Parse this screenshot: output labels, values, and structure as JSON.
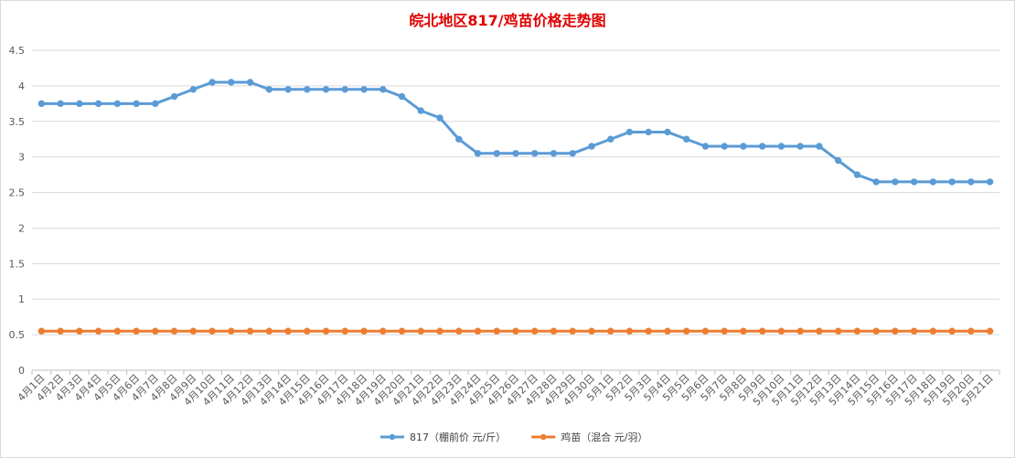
{
  "chart_data": {
    "type": "line",
    "title": "皖北地区817/鸡苗价格走势图",
    "xlabel": "",
    "ylabel": "",
    "ylim": [
      0,
      4.5
    ],
    "yticks": [
      "0",
      "0.5",
      "1",
      "1.5",
      "2",
      "2.5",
      "3",
      "3.5",
      "4",
      "4.5"
    ],
    "grid": true,
    "legend_position": "bottom",
    "categories": [
      "4月1日",
      "4月2日",
      "4月3日",
      "4月4日",
      "4月5日",
      "4月6日",
      "4月7日",
      "4月8日",
      "4月9日",
      "4月10日",
      "4月11日",
      "4月12日",
      "4月13日",
      "4月14日",
      "4月15日",
      "4月16日",
      "4月17日",
      "4月18日",
      "4月19日",
      "4月20日",
      "4月21日",
      "4月22日",
      "4月23日",
      "4月24日",
      "4月25日",
      "4月26日",
      "4月27日",
      "4月28日",
      "4月29日",
      "4月30日",
      "5月1日",
      "5月2日",
      "5月3日",
      "5月4日",
      "5月5日",
      "5月6日",
      "5月7日",
      "5月8日",
      "5月9日",
      "5月10日",
      "5月11日",
      "5月12日",
      "5月13日",
      "5月14日",
      "5月15日",
      "5月16日",
      "5月17日",
      "5月18日",
      "5月19日",
      "5月20日",
      "5月21日"
    ],
    "series": [
      {
        "name": "817（棚前价 元/斤）",
        "color": "#5b9bd5",
        "values": [
          3.75,
          3.75,
          3.75,
          3.75,
          3.75,
          3.75,
          3.75,
          3.85,
          3.95,
          4.05,
          4.05,
          4.05,
          3.95,
          3.95,
          3.95,
          3.95,
          3.95,
          3.95,
          3.95,
          3.85,
          3.65,
          3.55,
          3.25,
          3.05,
          3.05,
          3.05,
          3.05,
          3.05,
          3.05,
          3.15,
          3.25,
          3.35,
          3.35,
          3.35,
          3.25,
          3.15,
          3.15,
          3.15,
          3.15,
          3.15,
          3.15,
          3.15,
          2.95,
          2.75,
          2.65,
          2.65,
          2.65,
          2.65,
          2.65,
          2.65,
          2.65
        ]
      },
      {
        "name": "鸡苗（混合 元/羽）",
        "color": "#ed7d31",
        "values": [
          0.55,
          0.55,
          0.55,
          0.55,
          0.55,
          0.55,
          0.55,
          0.55,
          0.55,
          0.55,
          0.55,
          0.55,
          0.55,
          0.55,
          0.55,
          0.55,
          0.55,
          0.55,
          0.55,
          0.55,
          0.55,
          0.55,
          0.55,
          0.55,
          0.55,
          0.55,
          0.55,
          0.55,
          0.55,
          0.55,
          0.55,
          0.55,
          0.55,
          0.55,
          0.55,
          0.55,
          0.55,
          0.55,
          0.55,
          0.55,
          0.55,
          0.55,
          0.55,
          0.55,
          0.55,
          0.55,
          0.55,
          0.55,
          0.55,
          0.55,
          0.55
        ]
      }
    ]
  }
}
